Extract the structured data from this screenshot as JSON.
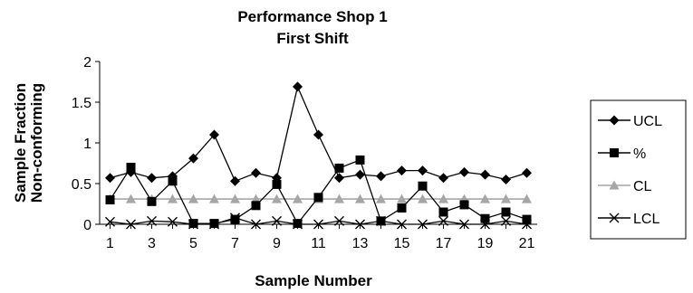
{
  "chart_data": {
    "type": "line",
    "title": "Performance Shop 1",
    "subtitle": "First Shift",
    "xlabel": "Sample Number",
    "ylabel": [
      "Sample Fraction",
      "Non-conforming"
    ],
    "x": [
      1,
      2,
      3,
      4,
      5,
      6,
      7,
      8,
      9,
      10,
      11,
      12,
      13,
      14,
      15,
      16,
      17,
      18,
      19,
      20,
      21
    ],
    "xticks": [
      "1",
      "3",
      "5",
      "7",
      "9",
      "11",
      "13",
      "15",
      "17",
      "19",
      "21"
    ],
    "yticks": [
      "0",
      "0.5",
      "1",
      "1.5",
      "2"
    ],
    "ylim": [
      0,
      2
    ],
    "grid": false,
    "legend": "right",
    "series": [
      {
        "name": "UCL",
        "marker": "diamond",
        "color": "#000000",
        "values": [
          0.57,
          0.64,
          0.57,
          0.59,
          0.81,
          1.1,
          0.53,
          0.63,
          0.57,
          1.69,
          1.1,
          0.57,
          0.61,
          0.59,
          0.66,
          0.66,
          0.57,
          0.64,
          0.61,
          0.55,
          0.63
        ]
      },
      {
        "name": "%",
        "marker": "square",
        "color": "#000000",
        "values": [
          0.3,
          0.7,
          0.28,
          0.53,
          0.01,
          0.01,
          0.06,
          0.23,
          0.49,
          0.01,
          0.33,
          0.69,
          0.79,
          0.04,
          0.2,
          0.47,
          0.15,
          0.24,
          0.07,
          0.15,
          0.06
        ]
      },
      {
        "name": "CL",
        "marker": "triangle",
        "color": "#a6a6a6",
        "values": [
          0.31,
          0.31,
          0.31,
          0.31,
          0.31,
          0.31,
          0.31,
          0.31,
          0.31,
          0.31,
          0.31,
          0.31,
          0.31,
          0.31,
          0.31,
          0.31,
          0.31,
          0.31,
          0.31,
          0.31,
          0.31
        ]
      },
      {
        "name": "LCL",
        "marker": "x",
        "color": "#000000",
        "values": [
          0.03,
          0.0,
          0.04,
          0.03,
          0.0,
          0.0,
          0.08,
          0.0,
          0.04,
          0.0,
          0.0,
          0.04,
          0.0,
          0.04,
          0.0,
          0.0,
          0.04,
          0.0,
          0.0,
          0.04,
          0.0
        ]
      }
    ]
  }
}
